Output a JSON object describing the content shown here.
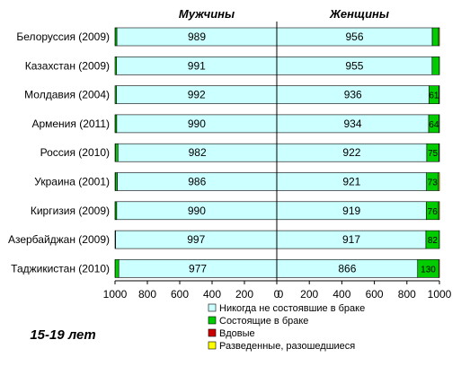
{
  "chart_data": {
    "type": "bar",
    "subtype": "stacked-horizontal-butterfly",
    "note": "15-19 лет",
    "panels": [
      {
        "key": "men",
        "title": "Мужчины",
        "direction": "reversed",
        "xlim": [
          0,
          1000
        ],
        "ticks": [
          "1000",
          "800",
          "600",
          "400",
          "200",
          "0"
        ]
      },
      {
        "key": "women",
        "title": "Женщины",
        "direction": "normal",
        "xlim": [
          0,
          1000
        ],
        "ticks": [
          "0",
          "200",
          "400",
          "600",
          "800",
          "1000"
        ]
      }
    ],
    "categories": [
      "Белоруссия (2009)",
      "Казахстан (2009)",
      "Молдавия (2004)",
      "Армения (2011)",
      "Россия (2010)",
      "Украина (2001)",
      "Киргизия (2009)",
      "Азербайджан (2009)",
      "Таджикистан (2010)"
    ],
    "series": [
      {
        "name": "Никогда  не состоявшие в браке",
        "color": "#ccffff",
        "men": [
          989,
          991,
          992,
          990,
          982,
          986,
          990,
          997,
          977
        ],
        "women": [
          956,
          955,
          936,
          934,
          922,
          921,
          919,
          917,
          866
        ]
      },
      {
        "name": "Состоящие в браке",
        "color": "#00cc00",
        "men": [
          10,
          9,
          8,
          9,
          16,
          12,
          9,
          3,
          22
        ],
        "women": [
          39,
          44,
          61,
          64,
          75,
          73,
          76,
          82,
          130
        ]
      },
      {
        "name": "Вдовые",
        "color": "#cc0000",
        "men": [
          0,
          0,
          0,
          0,
          0,
          0,
          0,
          0,
          0
        ],
        "women": [
          0,
          0,
          0,
          0,
          0,
          0,
          0,
          0,
          0
        ]
      },
      {
        "name": "Разведенные, разошедшиеся",
        "color": "#ffff00",
        "men": [
          1,
          0,
          0,
          1,
          2,
          2,
          1,
          0,
          1
        ],
        "women": [
          5,
          1,
          3,
          2,
          3,
          6,
          5,
          1,
          4
        ]
      }
    ],
    "value_labels": {
      "men": {
        "series": 0,
        "values": [
          "989",
          "991",
          "992",
          "990",
          "982",
          "986",
          "990",
          "997",
          "977"
        ]
      },
      "women": {
        "series": 0,
        "values": [
          "956",
          "955",
          "936",
          "934",
          "922",
          "921",
          "919",
          "917",
          "866"
        ]
      },
      "women_married": {
        "series": 1,
        "values": [
          "",
          "",
          "61",
          "64",
          "75",
          "73",
          "76",
          "82",
          "130"
        ]
      }
    },
    "legend": {
      "position": "bottom-right",
      "items": [
        "Никогда  не состоявшие в браке",
        "Состоящие в браке",
        "Вдовые",
        "Разведенные, разошедшиеся"
      ]
    },
    "grid": false
  }
}
